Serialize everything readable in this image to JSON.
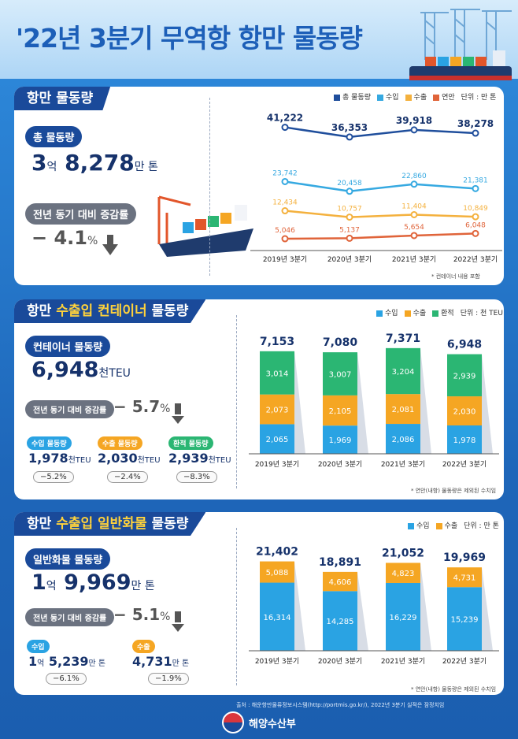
{
  "title": "'22년 3분기 무역항 항만 물동량",
  "footer": {
    "source": "출처 : 해운항만물류정보시스템(http://portmis.go.kr/), 2022년 3분기 실적은 잠정치임",
    "ministry": "해양수산부"
  },
  "section1": {
    "tag": "항만 물동량",
    "total_label": "총 물동량",
    "total_big1": "3",
    "total_u1": "억",
    "total_big2": "8,278",
    "total_u2": "만 톤",
    "yoy_label": "전년 동기 대비 증감률",
    "yoy_value": "− 4.1",
    "yoy_unit": "%",
    "legend": [
      "총 물동량",
      "수입",
      "수출",
      "연안"
    ],
    "unit": "단위 : 만 톤",
    "note": "* 컨테이너 내용 포함"
  },
  "section2": {
    "tag_pre": "항만 ",
    "tag_hl": "수출입 컨테이너",
    "tag_post": " 물동량",
    "total_label": "컨테이너 물동량",
    "total_big": "6,948",
    "total_unit": "천TEU",
    "yoy_label": "전년 동기 대비 증감률",
    "yoy_value": "− 5.7",
    "yoy_unit": "%",
    "subs": [
      {
        "label": "수입 물동량",
        "value": "1,978",
        "unit": "천TEU",
        "change": "−5.2%"
      },
      {
        "label": "수출 물동량",
        "value": "2,030",
        "unit": "천TEU",
        "change": "−2.4%"
      },
      {
        "label": "환적 물동량",
        "value": "2,939",
        "unit": "천TEU",
        "change": "−8.3%"
      }
    ],
    "legend": [
      "수입",
      "수출",
      "환적"
    ],
    "unit": "단위 : 천 TEU",
    "note": "* 연안(내항) 물동량은 제외된 수치임"
  },
  "section3": {
    "tag_pre": "항만 ",
    "tag_hl": "수출입 일반화물",
    "tag_post": " 물동량",
    "total_label": "일반화물 물동량",
    "total_big1": "1",
    "total_u1": "억",
    "total_big2": "9,969",
    "total_u2": "만 톤",
    "yoy_label": "전년 동기 대비 증감률",
    "yoy_value": "− 5.1",
    "yoy_unit": "%",
    "subs": [
      {
        "label": "수입",
        "value_a": "1",
        "unit_a": "억",
        "value_b": "5,239",
        "unit_b": "만 톤",
        "change": "−6.1%"
      },
      {
        "label": "수출",
        "value_a": "",
        "unit_a": "",
        "value_b": "4,731",
        "unit_b": "만 톤",
        "change": "−1.9%"
      }
    ],
    "legend": [
      "수입",
      "수출"
    ],
    "unit": "단위 : 만 톤",
    "note": "* 연안(내항) 물동량은 제외된 수치임"
  },
  "colors": {
    "navy": "#1a4a9a",
    "blue": "#2aa3e3",
    "orange": "#f5a623",
    "red": "#e2562b",
    "green": "#2bb673",
    "line_total": "#1f4e9c",
    "line_import": "#36a9e1",
    "line_export": "#f4b13e",
    "line_coastal": "#e0643a"
  },
  "chart_data": [
    {
      "type": "line",
      "categories": [
        "2019년 3분기",
        "2020년 3분기",
        "2021년 3분기",
        "2022년 3분기"
      ],
      "series": [
        {
          "name": "총 물동량",
          "values": [
            41222,
            36353,
            39918,
            38278
          ],
          "labels": [
            "41,222",
            "36,353",
            "39,918",
            "38,278"
          ]
        },
        {
          "name": "수입",
          "values": [
            23742,
            20458,
            22860,
            21381
          ],
          "labels": [
            "23,742",
            "20,458",
            "22,860",
            "21,381"
          ]
        },
        {
          "name": "수출",
          "values": [
            12434,
            10757,
            11404,
            10849
          ],
          "labels": [
            "12,434",
            "10,757",
            "11,404",
            "10,849"
          ]
        },
        {
          "name": "연안",
          "values": [
            5046,
            5137,
            5654,
            6048
          ],
          "labels": [
            "5,046",
            "5,137",
            "5,654",
            "6,048"
          ]
        }
      ]
    },
    {
      "type": "bar",
      "stacked": true,
      "categories": [
        "2019년 3분기",
        "2020년 3분기",
        "2021년 3분기",
        "2022년 3분기"
      ],
      "totals": [
        7153,
        7080,
        7371,
        6948
      ],
      "total_labels": [
        "7,153",
        "7,080",
        "7,371",
        "6,948"
      ],
      "series": [
        {
          "name": "수입",
          "values": [
            2065,
            1969,
            2086,
            1978
          ],
          "labels": [
            "2,065",
            "1,969",
            "2,086",
            "1,978"
          ]
        },
        {
          "name": "수출",
          "values": [
            2073,
            2105,
            2081,
            2030
          ],
          "labels": [
            "2,073",
            "2,105",
            "2,081",
            "2,030"
          ]
        },
        {
          "name": "환적",
          "values": [
            3014,
            3007,
            3204,
            2939
          ],
          "labels": [
            "3,014",
            "3,007",
            "3,204",
            "2,939"
          ]
        }
      ]
    },
    {
      "type": "bar",
      "stacked": true,
      "categories": [
        "2019년 3분기",
        "2020년 3분기",
        "2021년 3분기",
        "2022년 3분기"
      ],
      "totals": [
        21402,
        18891,
        21052,
        19969
      ],
      "total_labels": [
        "21,402",
        "18,891",
        "21,052",
        "19,969"
      ],
      "series": [
        {
          "name": "수입",
          "values": [
            16314,
            14285,
            16229,
            15239
          ],
          "labels": [
            "16,314",
            "14,285",
            "16,229",
            "15,239"
          ]
        },
        {
          "name": "수출",
          "values": [
            5088,
            4606,
            4823,
            4731
          ],
          "labels": [
            "5,088",
            "4,606",
            "4,823",
            "4,731"
          ]
        }
      ]
    }
  ]
}
